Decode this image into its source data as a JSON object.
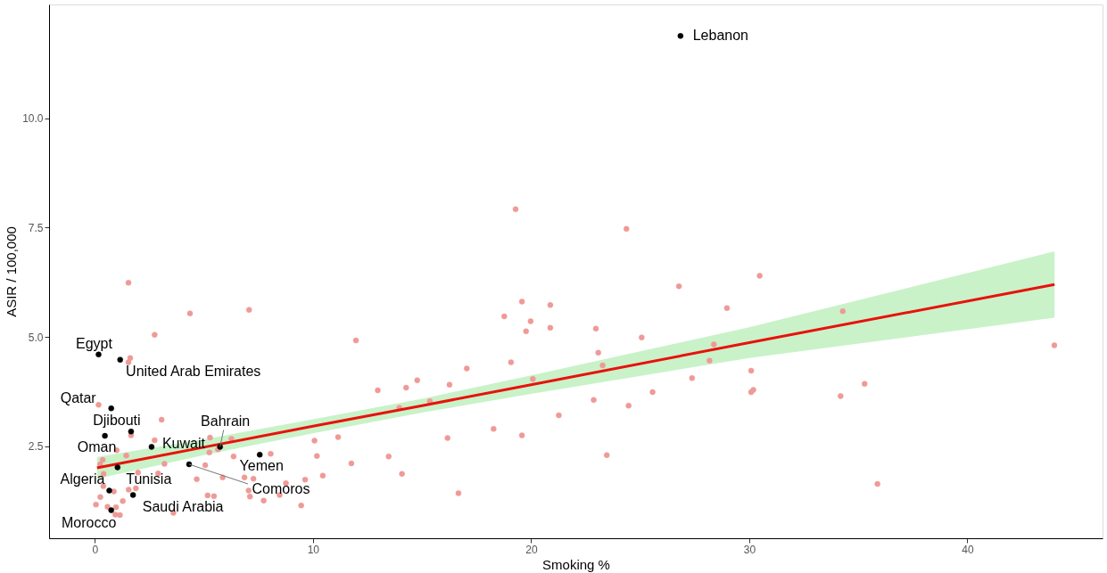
{
  "chart_data": {
    "type": "scatter",
    "xlabel": "Smoking %",
    "ylabel": "ASIR / 100,000",
    "xlim": [
      -2.1,
      46.2
    ],
    "ylim": [
      0.4,
      12.6
    ],
    "xticks": [
      0,
      10,
      20,
      30,
      40
    ],
    "yticks": [
      {
        "value": 2.5,
        "label": "2.5"
      },
      {
        "value": 5,
        "label": "5.0"
      },
      {
        "value": 7.5,
        "label": "7.5"
      },
      {
        "value": 10,
        "label": "10.0"
      }
    ],
    "grid": false,
    "legend": false,
    "marker": "circle",
    "series": [
      {
        "type": "scatter",
        "color": "#ee9a96",
        "x": [
          1.54,
          4.36,
          2.74,
          7.07,
          1.62,
          1.54,
          0.17,
          3.06,
          1.66,
          2.74,
          6.26,
          5.28,
          5.25,
          5.64,
          1.44,
          3.19,
          2.9,
          1.98,
          0.36,
          0.24,
          0.4,
          1.0,
          6.36,
          5.06,
          8.06,
          10.07,
          11.15,
          10.18,
          11.76,
          10.45,
          9.64,
          8.76,
          8.47,
          9.46,
          7.74,
          6.86,
          7.27,
          7.05,
          7.11,
          5.86,
          4.67,
          5.17,
          5.46,
          3.6,
          1.88,
          1.55,
          0.87,
          0.25,
          0.39,
          1.28,
          0.05,
          0.58,
          0.97,
          0.94,
          1.15,
          19.29,
          24.37,
          26.78,
          11.97,
          19.58,
          20.88,
          18.77,
          19.98,
          19.77,
          20.88,
          22.97,
          25.07,
          23.08,
          23.28,
          19.08,
          17.05,
          14.78,
          14.27,
          12.97,
          16.26,
          20.08,
          15.36,
          13.96,
          28.38,
          28.18,
          27.38,
          25.57,
          22.87,
          24.47,
          21.27,
          18.28,
          19.58,
          16.17,
          13.47,
          14.08,
          23.47,
          16.67,
          30.48,
          28.98,
          34.29,
          43.99,
          30.09,
          30.09,
          30.19,
          35.29,
          34.19,
          35.88
        ],
        "values": [
          6.24,
          5.54,
          5.05,
          5.62,
          4.52,
          4.42,
          3.45,
          3.11,
          2.75,
          2.64,
          2.67,
          2.7,
          2.36,
          2.43,
          2.29,
          2.1,
          1.88,
          1.9,
          2.19,
          2.09,
          1.87,
          2.41,
          2.27,
          2.07,
          2.33,
          2.63,
          2.71,
          2.28,
          2.11,
          1.83,
          1.74,
          1.66,
          1.39,
          1.15,
          1.26,
          1.79,
          1.76,
          1.49,
          1.35,
          1.79,
          1.75,
          1.38,
          1.36,
          0.98,
          1.54,
          1.51,
          1.47,
          1.34,
          1.59,
          1.25,
          1.17,
          1.12,
          1.11,
          0.94,
          0.93,
          7.92,
          7.47,
          6.16,
          4.92,
          5.81,
          5.73,
          5.47,
          5.36,
          5.13,
          5.21,
          5.19,
          4.99,
          4.64,
          4.35,
          4.42,
          4.28,
          4.01,
          3.84,
          3.78,
          3.91,
          4.04,
          3.53,
          3.38,
          4.83,
          4.46,
          4.06,
          3.74,
          3.56,
          3.43,
          3.21,
          2.9,
          2.75,
          2.69,
          2.27,
          1.87,
          2.3,
          1.43,
          6.4,
          5.66,
          5.59,
          4.81,
          4.23,
          3.74,
          3.79,
          3.93,
          3.65,
          1.64
        ]
      },
      {
        "type": "scatter",
        "color": "#000000",
        "x": [
          26.85,
          0.17,
          1.16,
          0.75,
          1.66,
          0.46,
          2.6,
          5.74,
          7.56,
          4.32,
          1.04,
          0.66,
          1.75,
          0.75
        ],
        "values": [
          11.88,
          4.6,
          4.48,
          3.37,
          2.84,
          2.74,
          2.49,
          2.49,
          2.31,
          2.09,
          2.02,
          1.49,
          1.39,
          1.04
        ]
      },
      {
        "type": "line",
        "marker": "none",
        "line_style": "solid",
        "color": "#e8120c",
        "x": [
          0.1,
          5,
          10,
          15,
          20,
          30,
          44
        ],
        "values": [
          2.01,
          2.48,
          2.96,
          3.43,
          3.91,
          4.87,
          6.2
        ],
        "lower": [
          1.76,
          2.3,
          2.8,
          3.27,
          3.7,
          4.52,
          5.44
        ],
        "upper": [
          2.26,
          2.66,
          3.12,
          3.59,
          4.12,
          5.22,
          6.96
        ]
      }
    ],
    "annotations": [
      {
        "text": "Lebanon",
        "x": 26.85,
        "y": 11.88
      },
      {
        "text": "Egypt",
        "x": 0.17,
        "y": 4.6
      },
      {
        "text": "United Arab Emirates",
        "x": 1.16,
        "y": 4.48
      },
      {
        "text": "Qatar",
        "x": 0.75,
        "y": 3.37
      },
      {
        "text": "Djibouti",
        "x": 1.66,
        "y": 2.84
      },
      {
        "text": "Oman",
        "x": 0.46,
        "y": 2.74
      },
      {
        "text": "Kuwait",
        "x": 2.6,
        "y": 2.49
      },
      {
        "text": "Bahrain",
        "x": 5.74,
        "y": 2.49
      },
      {
        "text": "Yemen",
        "x": 7.56,
        "y": 2.31
      },
      {
        "text": "Comoros",
        "x": 4.32,
        "y": 2.09
      },
      {
        "text": "Tunisia",
        "x": 1.04,
        "y": 2.02
      },
      {
        "text": "Algeria",
        "x": 0.66,
        "y": 1.49
      },
      {
        "text": "Saudi Arabia",
        "x": 1.75,
        "y": 1.39
      },
      {
        "text": "Morocco",
        "x": 0.75,
        "y": 1.04
      }
    ]
  }
}
